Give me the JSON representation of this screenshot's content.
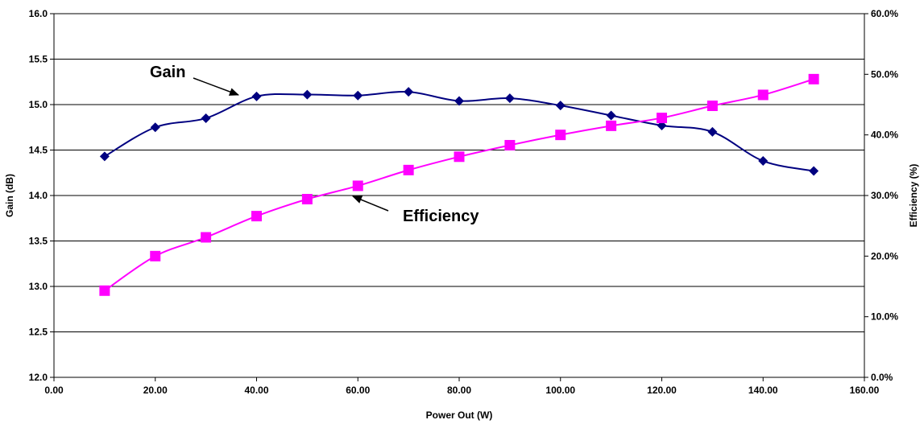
{
  "chart_data": {
    "type": "line",
    "title": "",
    "xlabel": "Power Out (W)",
    "ylabel": "Gain (dB)",
    "y2label": "Efficiency (%)",
    "xlim": [
      0,
      160
    ],
    "ylim": [
      12.0,
      16.0
    ],
    "y2lim": [
      0,
      60
    ],
    "x_ticks": [
      "0.00",
      "20.00",
      "40.00",
      "60.00",
      "80.00",
      "100.00",
      "120.00",
      "140.00",
      "160.00"
    ],
    "y_ticks": [
      "12.0",
      "12.5",
      "13.0",
      "13.5",
      "14.0",
      "14.5",
      "15.0",
      "15.5",
      "16.0"
    ],
    "y2_ticks": [
      "0.0%",
      "10.0%",
      "20.0%",
      "30.0%",
      "40.0%",
      "50.0%",
      "60.0%"
    ],
    "grid": "horizontal",
    "series": [
      {
        "name": "Gain",
        "axis": "left",
        "color": "#000080",
        "marker": "diamond",
        "x": [
          10,
          20,
          30,
          40,
          50,
          60,
          70,
          80,
          90,
          100,
          110,
          120,
          130,
          140,
          150
        ],
        "values": [
          14.43,
          14.75,
          14.85,
          15.09,
          15.11,
          15.1,
          15.14,
          15.04,
          15.07,
          14.99,
          14.88,
          14.77,
          14.7,
          14.38,
          14.27
        ]
      },
      {
        "name": "Efficiency",
        "axis": "right",
        "color": "#ff00ff",
        "marker": "square",
        "x": [
          10,
          20,
          30,
          40,
          50,
          60,
          70,
          80,
          90,
          100,
          110,
          120,
          130,
          140,
          150
        ],
        "values": [
          14.3,
          20.0,
          23.1,
          26.6,
          29.4,
          31.6,
          34.2,
          36.4,
          38.3,
          40.0,
          41.5,
          42.8,
          44.8,
          46.6,
          49.2
        ]
      }
    ],
    "annotations": [
      {
        "text": "Gain",
        "series": "Gain"
      },
      {
        "text": "Efficiency",
        "series": "Efficiency"
      }
    ]
  }
}
